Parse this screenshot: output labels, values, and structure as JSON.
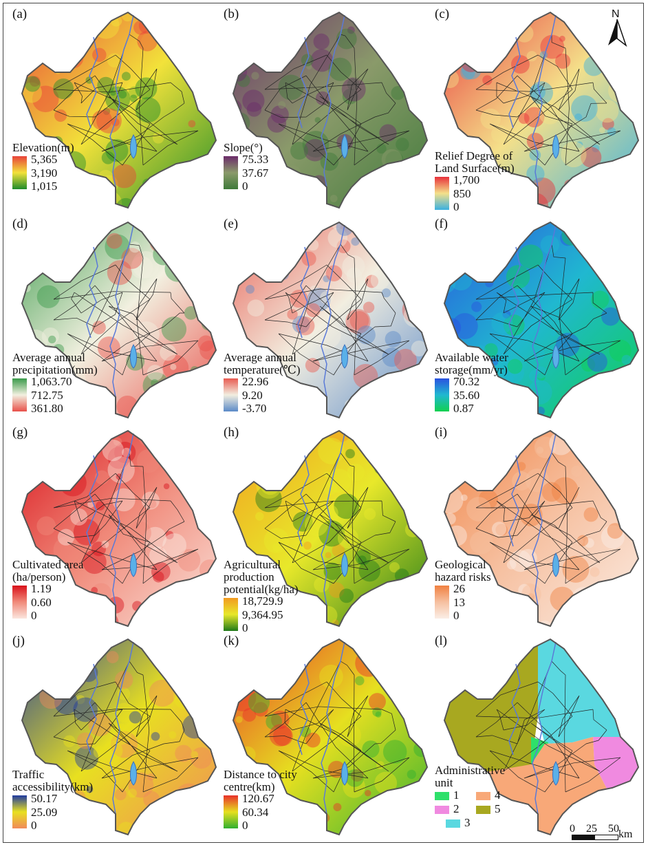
{
  "panels": [
    {
      "id": "a",
      "label": "(a)",
      "legend_title": "Elevation(m)",
      "values": [
        "5,365",
        "3,190",
        "1,015"
      ],
      "colors": [
        "#e8423a",
        "#f2e23a",
        "#1e8b2a"
      ]
    },
    {
      "id": "b",
      "label": "(b)",
      "legend_title": "Slope(°)",
      "values": [
        "75.33",
        "37.67",
        "0"
      ],
      "colors": [
        "#6b2b6a",
        "#8a9a6a",
        "#3f7a3a"
      ]
    },
    {
      "id": "c",
      "label": "(c)",
      "legend_title": "Relief Degree of Land Surface(m)",
      "values": [
        "1,700",
        "850",
        "0"
      ],
      "colors": [
        "#e8303a",
        "#f4e08a",
        "#3ab0e0"
      ]
    },
    {
      "id": "d",
      "label": "(d)",
      "legend_title": "Average annual precipitation(mm)",
      "values": [
        "1,063.70",
        "712.75",
        "361.80"
      ],
      "colors": [
        "#3a9a4a",
        "#f2f0e0",
        "#e8504a"
      ]
    },
    {
      "id": "e",
      "label": "(e)",
      "legend_title": "Average annual temperature(℃)",
      "values": [
        "22.96",
        "9.20",
        "-3.70"
      ],
      "colors": [
        "#e85a50",
        "#f2eee0",
        "#5a8ac8"
      ]
    },
    {
      "id": "f",
      "label": "(f)",
      "legend_title": "Available water storage(mm/yr)",
      "values": [
        "70.32",
        "35.60",
        "0.87"
      ],
      "colors": [
        "#2a52e0",
        "#20b8d0",
        "#10d050"
      ]
    },
    {
      "id": "g",
      "label": "(g)",
      "legend_title": "Cultivated area (ha/person)",
      "values": [
        "1.19",
        "0.60",
        "0"
      ],
      "colors": [
        "#d8101a",
        "#f08a7a",
        "#fbe6de"
      ]
    },
    {
      "id": "h",
      "label": "(h)",
      "legend_title": "Agricultural production potential(kg/ha)",
      "values": [
        "18,729.9",
        "9,364.95",
        "0"
      ],
      "colors": [
        "#f29a20",
        "#e8e82a",
        "#1f7a1a"
      ]
    },
    {
      "id": "i",
      "label": "(i)",
      "legend_title": "Geological hazard risks",
      "values": [
        "26",
        "13",
        "0"
      ],
      "colors": [
        "#f08040",
        "#f6c0a0",
        "#fbeee6"
      ]
    },
    {
      "id": "j",
      "label": "(j)",
      "legend_title": "Traffic accessibility(km)",
      "values": [
        "50.17",
        "25.09",
        "0"
      ],
      "colors": [
        "#1f3aa0",
        "#e8e020",
        "#f08a5a"
      ]
    },
    {
      "id": "k",
      "label": "(k)",
      "legend_title": "Distance to city centre(km)",
      "values": [
        "120.67",
        "60.34",
        "0"
      ],
      "colors": [
        "#e8302a",
        "#e6e020",
        "#30b030"
      ]
    },
    {
      "id": "l",
      "label": "(l)",
      "legend_title": "Administrative unit",
      "categories": [
        {
          "label": "1",
          "color": "#2ee06a"
        },
        {
          "label": "2",
          "color": "#f08ae0"
        },
        {
          "label": "3",
          "color": "#5ad8e0"
        },
        {
          "label": "4",
          "color": "#f8a878"
        },
        {
          "label": "5",
          "color": "#a8a820"
        }
      ]
    }
  ],
  "north_label": "N",
  "scale": {
    "ticks": [
      "0",
      "25",
      "50"
    ],
    "unit": "km"
  }
}
